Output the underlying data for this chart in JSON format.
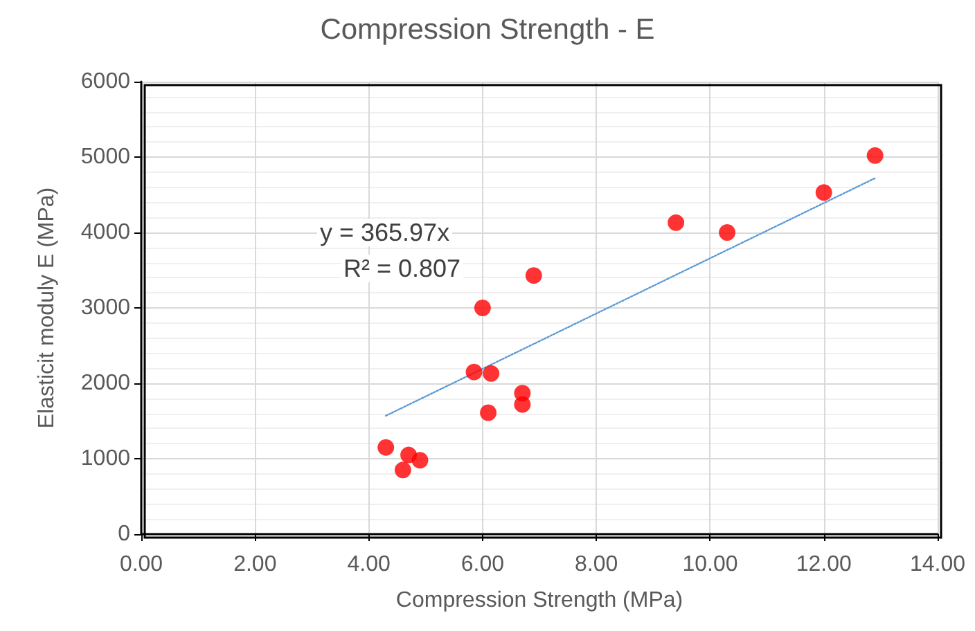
{
  "chart_data": {
    "type": "scatter",
    "title": "Compression Strength - E",
    "xlabel": "Compression Strength (MPa)",
    "ylabel": "Elasticit moduly E (MPa)",
    "annotations": [
      "y = 365.97x",
      "R² = 0.807"
    ],
    "xlim": [
      0,
      14
    ],
    "xticks": [
      {
        "value": 0,
        "label": "0.00"
      },
      {
        "value": 2,
        "label": "2.00"
      },
      {
        "value": 4,
        "label": "4.00"
      },
      {
        "value": 6,
        "label": "6.00"
      },
      {
        "value": 8,
        "label": "8.00"
      },
      {
        "value": 10,
        "label": "10.00"
      },
      {
        "value": 12,
        "label": "12.00"
      },
      {
        "value": 14,
        "label": "14.00"
      }
    ],
    "ylim": [
      0,
      6000
    ],
    "yticks": [
      0,
      1000,
      2000,
      3000,
      4000,
      5000,
      6000
    ],
    "grid": true,
    "marker": "circle",
    "series": [
      {
        "type": "scatter",
        "color": "#ff0000",
        "x": [
          4.3,
          4.7,
          4.6,
          4.9,
          5.85,
          6.0,
          6.15,
          6.1,
          6.7,
          6.7,
          6.9,
          9.4,
          10.3,
          12.0,
          12.9
        ],
        "values": [
          1150,
          1050,
          850,
          980,
          2150,
          3000,
          2130,
          1610,
          1870,
          1720,
          3430,
          4130,
          4000,
          4530,
          5020
        ]
      },
      {
        "type": "line",
        "color": "#5b9bd5",
        "line_style": "dotted",
        "marker": "none",
        "x": [
          4.3,
          12.9
        ],
        "values": [
          1570,
          4720
        ]
      }
    ]
  }
}
